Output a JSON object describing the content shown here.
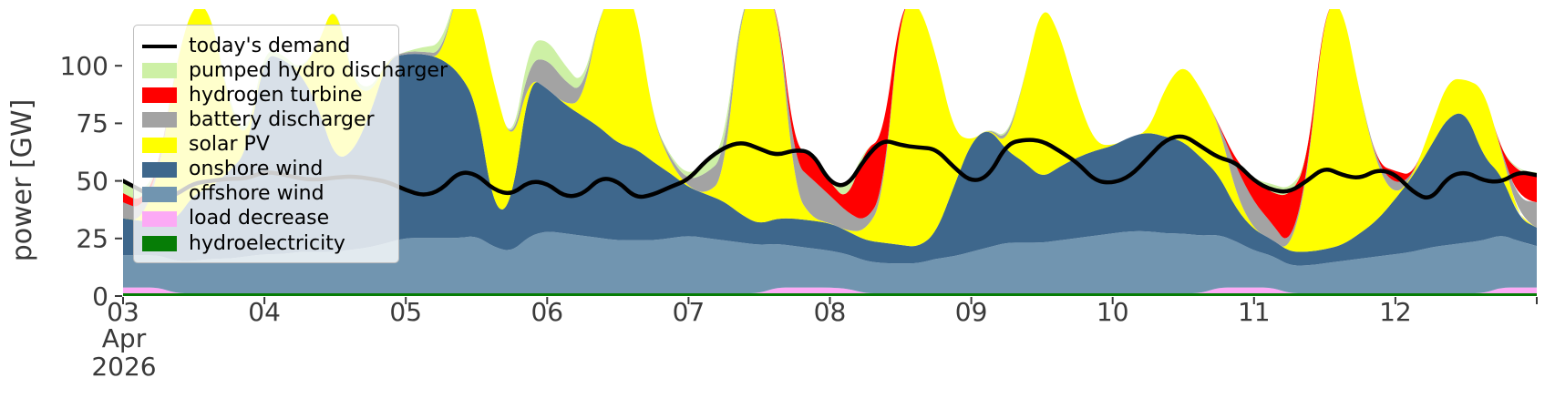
{
  "figure": {
    "ylabel": "power [GW]",
    "x_axis": {
      "month_label": "Apr",
      "year_label": "2026",
      "tick_labels": [
        "03",
        "04",
        "05",
        "06",
        "07",
        "08",
        "09",
        "10",
        "11",
        "12"
      ],
      "tick_days": [
        3,
        4,
        5,
        6,
        7,
        8,
        9,
        10,
        11,
        12
      ],
      "extra_unlabeled_tick_day": 13
    },
    "y_axis": {
      "tick_labels": [
        "0",
        "25",
        "50",
        "75",
        "100"
      ],
      "tick_values": [
        0,
        25,
        50,
        75,
        100
      ]
    },
    "text_color": "#3a3a3a",
    "background_color": "#ffffff"
  },
  "legend": {
    "items": [
      {
        "label": "today's demand",
        "color": "#000000",
        "swatch": "line"
      },
      {
        "label": "pumped hydro discharger",
        "color": "#cdf0a5",
        "swatch": "patch"
      },
      {
        "label": "hydrogen turbine",
        "color": "#ff0000",
        "swatch": "patch"
      },
      {
        "label": "battery discharger",
        "color": "#a3a3a3",
        "swatch": "patch"
      },
      {
        "label": "solar PV",
        "color": "#ffff00",
        "swatch": "patch"
      },
      {
        "label": "onshore wind",
        "color": "#3e678c",
        "swatch": "patch"
      },
      {
        "label": "offshore wind",
        "color": "#7195b0",
        "swatch": "patch"
      },
      {
        "label": "load decrease",
        "color": "#fcaaf5",
        "swatch": "patch"
      },
      {
        "label": "hydroelectricity",
        "color": "#067d06",
        "swatch": "patch"
      }
    ]
  },
  "chart_data": {
    "type": "area",
    "title": "",
    "xlabel_lines": [
      "Apr",
      "2026"
    ],
    "ylabel": "power [GW]",
    "x_start": "2026-04-03 00:00",
    "x_end": "2026-04-13 00:00",
    "x_step_hours": 3,
    "n_points": 81,
    "xlim_days": [
      3,
      13
    ],
    "ylim_gw": [
      0,
      124.6
    ],
    "grid": false,
    "legend_position": "upper-left",
    "stacking_order_bottom_to_top": [
      "hydroelectricity",
      "load decrease",
      "offshore wind",
      "onshore wind",
      "solar PV",
      "battery discharger",
      "hydrogen turbine",
      "pumped hydro discharger"
    ],
    "series": [
      {
        "name": "hydroelectricity",
        "color": "#067d06",
        "constant": 1.2
      },
      {
        "name": "load decrease",
        "color": "#fcaaf5",
        "values": [
          2.5,
          2.5,
          2.5,
          0,
          0,
          0,
          0,
          0,
          0,
          0,
          0,
          0,
          0,
          0,
          0,
          0,
          0,
          0,
          0,
          0,
          0,
          0,
          0,
          0,
          0,
          0,
          0,
          0,
          0,
          0,
          0,
          0,
          0,
          0,
          0,
          0,
          0,
          2.5,
          2.5,
          2.5,
          2.5,
          2,
          0,
          0,
          0,
          0,
          0,
          0,
          0,
          0,
          0,
          0,
          0,
          0,
          0,
          0,
          0,
          0,
          0,
          0,
          0,
          0,
          2.5,
          2.5,
          2.5,
          2.5,
          0,
          0,
          0,
          0,
          0,
          0,
          0,
          0,
          0,
          0,
          0,
          0,
          2.5,
          2.5,
          2.5
        ]
      },
      {
        "name": "offshore wind",
        "color": "#7195b0",
        "values": [
          14,
          14,
          14,
          14,
          14,
          15,
          15,
          16,
          17,
          17,
          18,
          18,
          18,
          19,
          20,
          22,
          24,
          24,
          24,
          24,
          25,
          20,
          18,
          25,
          27,
          26,
          25,
          24,
          23,
          23,
          23,
          24,
          25,
          24,
          23,
          22,
          21,
          19,
          18,
          17,
          16,
          15,
          14,
          13,
          13,
          13,
          15,
          16,
          18,
          20,
          22,
          22,
          22,
          23,
          24,
          25,
          26,
          27,
          27,
          26,
          26,
          25,
          23,
          20,
          16,
          14,
          12,
          12,
          13,
          14,
          15,
          16,
          17,
          18,
          20,
          21,
          22,
          23,
          23,
          20,
          18
        ]
      },
      {
        "name": "onshore wind",
        "color": "#3e678c",
        "values": [
          16,
          15,
          14,
          18,
          29,
          31,
          38,
          45,
          87,
          85,
          78,
          64,
          40,
          42,
          58,
          80,
          80,
          80,
          78,
          72,
          58,
          15,
          20,
          69,
          62,
          56,
          52,
          48,
          42,
          40,
          34,
          28,
          21,
          19,
          17,
          12,
          9,
          11,
          12,
          12,
          12,
          10,
          9,
          9,
          8,
          7,
          11,
          30,
          48,
          52,
          40,
          35,
          28,
          32,
          35,
          37,
          38,
          41,
          43,
          42,
          40,
          34,
          26,
          14,
          9,
          7,
          6,
          6,
          6,
          7,
          11,
          16,
          24,
          33,
          44,
          56,
          57,
          36,
          26,
          10,
          8
        ]
      },
      {
        "name": "solar PV",
        "color": "#ffff00",
        "values": [
          0,
          0,
          20,
          68,
          84,
          76,
          28,
          4,
          0,
          0,
          0,
          25,
          70,
          30,
          8,
          0,
          0,
          0,
          0,
          38,
          43,
          55,
          25,
          0,
          0,
          0,
          6,
          50,
          70,
          63,
          18,
          4,
          0,
          0,
          10,
          92,
          100,
          95,
          12,
          1,
          0,
          0,
          4,
          18,
          104,
          107,
          78,
          24,
          0,
          0,
          2,
          36,
          77,
          58,
          26,
          3,
          0,
          0,
          0,
          22,
          34,
          30,
          22,
          6,
          0,
          0,
          0,
          30,
          106,
          105,
          60,
          22,
          1,
          0,
          8,
          16,
          14,
          30,
          10,
          0,
          0
        ]
      },
      {
        "name": "battery discharger",
        "color": "#a3a3a3",
        "values": [
          7,
          5,
          2,
          0,
          0,
          0,
          0,
          0,
          0,
          0,
          0,
          0,
          0,
          0,
          0,
          0,
          1,
          1,
          2,
          0,
          0,
          0,
          0,
          7,
          13,
          10,
          4,
          0,
          0,
          0,
          0,
          2,
          3,
          9,
          9,
          1,
          0,
          0,
          12,
          17,
          12,
          8,
          4,
          3,
          0,
          0,
          0,
          0,
          0,
          0,
          2,
          0,
          0,
          0,
          0,
          0,
          0,
          0,
          0,
          0,
          0,
          0,
          0,
          12,
          12,
          7,
          2,
          2,
          0,
          0,
          0,
          2,
          5,
          0,
          0,
          0,
          0,
          0,
          0,
          8,
          11
        ]
      },
      {
        "name": "hydrogen turbine",
        "color": "#ff0000",
        "values": [
          4,
          3,
          1,
          0,
          0,
          0,
          0,
          0,
          0,
          0,
          0,
          0,
          0,
          0,
          0,
          0,
          0,
          0,
          0,
          0,
          0,
          0,
          0,
          0,
          0,
          0,
          0,
          0,
          0,
          0,
          0,
          0,
          0,
          0,
          0,
          0,
          0,
          0,
          6,
          12,
          5.5,
          5,
          32,
          24,
          0,
          0,
          0,
          0,
          0,
          0,
          0,
          0,
          0,
          0,
          0,
          0,
          0,
          0,
          0,
          0,
          0,
          0,
          0,
          3,
          10,
          13,
          22,
          6,
          0,
          0,
          0,
          0,
          6,
          0,
          0,
          0,
          0,
          0,
          0,
          12,
          12
        ]
      },
      {
        "name": "pumped hydro discharger",
        "color": "#cdf0a5",
        "values": [
          5,
          3,
          1,
          0,
          0,
          0,
          2,
          2,
          2.5,
          2,
          1,
          0,
          0,
          2,
          2,
          0,
          0,
          2,
          4,
          0,
          0,
          0,
          0,
          8,
          8.5,
          7,
          3,
          0,
          0,
          0,
          0,
          1,
          2,
          5,
          5,
          0,
          0,
          0,
          0,
          0,
          0,
          6,
          0,
          0,
          0,
          0,
          0,
          0,
          0,
          0,
          1,
          0,
          0,
          0,
          0,
          0,
          0,
          0,
          0,
          0,
          0,
          0,
          0,
          0,
          0,
          4,
          3,
          0,
          0,
          0,
          0,
          0,
          0,
          0,
          0,
          0,
          0,
          0,
          0,
          1,
          1
        ]
      }
    ],
    "demand_line": {
      "name": "today's demand",
      "color": "#000000",
      "values": [
        50,
        46,
        41.5,
        44,
        49,
        50,
        51,
        51,
        54,
        53,
        51,
        50.5,
        51.5,
        52,
        51,
        49.5,
        46,
        43.5,
        46,
        54,
        53,
        46,
        44,
        50,
        49,
        43,
        44,
        51.5,
        50,
        42.5,
        44,
        47.5,
        50.5,
        59,
        64.5,
        67,
        64,
        61,
        63.5,
        62.5,
        49,
        47.5,
        60,
        68,
        65.5,
        64.5,
        64,
        56,
        49.5,
        52,
        66,
        68,
        67.5,
        63,
        58,
        50,
        49,
        52,
        60,
        68,
        70,
        65,
        60,
        58,
        50,
        46,
        45,
        50,
        56,
        52.5,
        51,
        55,
        53,
        45,
        41.5,
        52,
        54,
        50,
        49.5,
        54,
        52.5
      ]
    }
  }
}
